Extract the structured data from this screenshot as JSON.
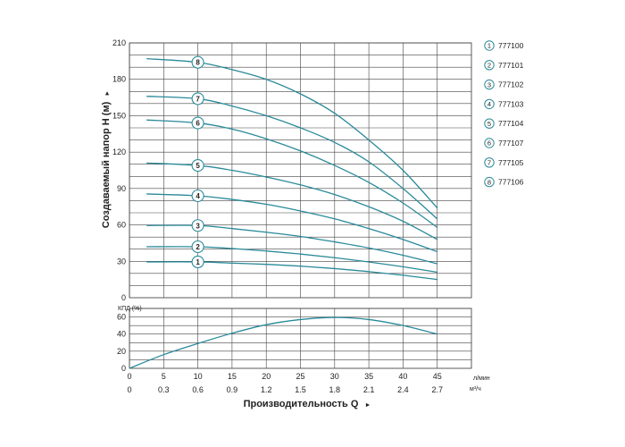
{
  "chart_data": [
    {
      "type": "line",
      "title": "",
      "ylabel": "Создаваемый напор H (м)",
      "ylabel_arrow": "►",
      "xlabel": "",
      "x_unit": "л/мин",
      "ylim": [
        0,
        210
      ],
      "yticks": [
        0,
        30,
        60,
        90,
        120,
        150,
        180,
        210
      ],
      "xlim": [
        0,
        50
      ],
      "xticks": [
        0,
        5,
        10,
        15,
        20,
        25,
        30,
        35,
        40,
        45
      ],
      "grid": true,
      "legend_position": "right",
      "series": [
        {
          "name": "777100",
          "marker": "1",
          "x": [
            2.5,
            10,
            15,
            20,
            25,
            30,
            35,
            40,
            45
          ],
          "y": [
            29.5,
            29.5,
            28.5,
            27.5,
            26,
            24,
            21.5,
            18.5,
            15
          ]
        },
        {
          "name": "777101",
          "marker": "2",
          "x": [
            2.5,
            10,
            15,
            20,
            25,
            30,
            35,
            40,
            45
          ],
          "y": [
            42,
            42,
            40.5,
            38.5,
            36,
            33,
            29.5,
            25.5,
            21
          ]
        },
        {
          "name": "777102",
          "marker": "3",
          "x": [
            2.5,
            10,
            15,
            20,
            25,
            30,
            35,
            40,
            45
          ],
          "y": [
            59.5,
            59.5,
            57,
            54,
            50.5,
            46,
            41,
            35,
            28
          ]
        },
        {
          "name": "777103",
          "marker": "4",
          "x": [
            2.5,
            10,
            15,
            20,
            25,
            30,
            35,
            40,
            45
          ],
          "y": [
            85.5,
            84,
            81,
            77,
            71.5,
            65,
            57,
            48,
            38
          ]
        },
        {
          "name": "777104",
          "marker": "5",
          "x": [
            2.5,
            10,
            15,
            20,
            25,
            30,
            35,
            40,
            45
          ],
          "y": [
            111,
            109,
            105,
            99.5,
            93,
            85,
            75,
            63,
            48
          ]
        },
        {
          "name": "777107",
          "marker": "6",
          "x": [
            2.5,
            10,
            15,
            20,
            25,
            30,
            35,
            40,
            45
          ],
          "y": [
            146.5,
            144,
            139,
            131,
            121,
            109,
            95,
            78,
            58
          ]
        },
        {
          "name": "777105",
          "marker": "7",
          "x": [
            2.5,
            10,
            15,
            20,
            25,
            30,
            35,
            40,
            45
          ],
          "y": [
            166,
            164,
            158,
            150,
            140,
            128,
            112,
            90,
            65
          ]
        },
        {
          "name": "777106",
          "marker": "8",
          "x": [
            2.5,
            10,
            15,
            20,
            25,
            30,
            35,
            40,
            45
          ],
          "y": [
            197,
            194,
            188,
            180,
            168,
            152,
            130,
            105,
            74
          ]
        }
      ]
    },
    {
      "type": "line",
      "title": "",
      "ylabel": "КПД (%)",
      "ylim": [
        0,
        70
      ],
      "yticks": [
        0,
        20,
        40,
        60
      ],
      "xlim": [
        0,
        50
      ],
      "xticks": [
        0,
        5,
        10,
        15,
        20,
        25,
        30,
        35,
        40,
        45
      ],
      "grid": true,
      "series": [
        {
          "x": [
            0,
            5,
            10,
            15,
            20,
            25,
            30,
            35,
            40,
            45
          ],
          "y": [
            0,
            16,
            29,
            41,
            51,
            57,
            59.5,
            57,
            50,
            40
          ]
        }
      ]
    }
  ],
  "x_axis": {
    "primary_ticks": [
      "0",
      "5",
      "10",
      "15",
      "20",
      "25",
      "30",
      "35",
      "40",
      "45"
    ],
    "primary_unit": "л/мин",
    "secondary_ticks": [
      "0",
      "0.3",
      "0.6",
      "0.9",
      "1.2",
      "1.5",
      "1.8",
      "2.1",
      "2.4",
      "2.7"
    ],
    "secondary_unit": "м³/ч",
    "title": "Производительность Q",
    "title_arrow": "►"
  },
  "legend": [
    {
      "num": "1",
      "label": "777100"
    },
    {
      "num": "2",
      "label": "777101"
    },
    {
      "num": "3",
      "label": "777102"
    },
    {
      "num": "4",
      "label": "777103"
    },
    {
      "num": "5",
      "label": "777104"
    },
    {
      "num": "6",
      "label": "777107"
    },
    {
      "num": "7",
      "label": "777105"
    },
    {
      "num": "8",
      "label": "777106"
    }
  ],
  "colors": {
    "curve": "#2a8a99",
    "grid": "#444444",
    "text": "#222222"
  }
}
